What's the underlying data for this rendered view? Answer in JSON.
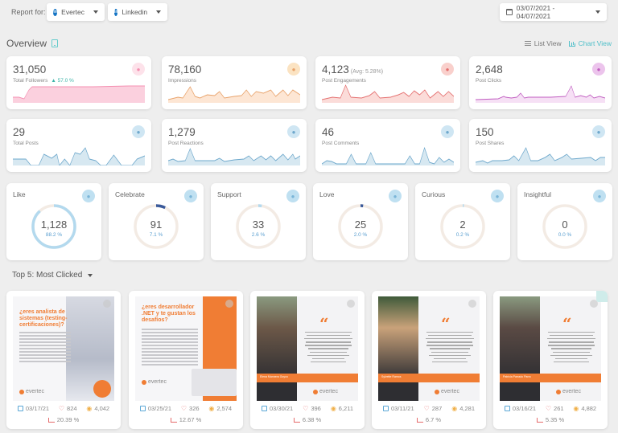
{
  "header": {
    "report_for_label": "Report for:",
    "account_select": {
      "value": "Evertec",
      "icon": "linkedin-icon"
    },
    "network_select": {
      "value": "Linkedin",
      "icon": "linkedin-icon"
    },
    "date_range": {
      "value": "03/07/2021 - 04/07/2021",
      "icon": "calendar-icon"
    }
  },
  "overview": {
    "title": "Overview",
    "views": {
      "list": "List View",
      "chart": "Chart View",
      "active": "chart"
    }
  },
  "metrics": [
    {
      "value": "31,050",
      "label": "Total Followers",
      "delta": "▲ 57.0 %",
      "icon": "followers-icon",
      "color": "#f48fb1",
      "bg": "#fde2ea",
      "fill": "#fbd0de"
    },
    {
      "value": "78,160",
      "label": "Impressions",
      "icon": "eye-icon",
      "color": "#e8a26a",
      "bg": "#fbe3c2",
      "fill": "#fde6d4"
    },
    {
      "value": "4,123",
      "avg": "(Avg: 5.28%)",
      "label": "Post Engagements",
      "icon": "heart-icon",
      "color": "#e46f6f",
      "bg": "#f9d0cc",
      "fill": "#fbdcd9"
    },
    {
      "value": "2,648",
      "label": "Post Clicks",
      "icon": "cursor-icon",
      "color": "#c05dc0",
      "bg": "#ecc4ec",
      "fill": "#f6e0f5"
    },
    {
      "value": "29",
      "label": "Total Posts",
      "icon": "post-icon",
      "color": "#6ea8cc",
      "bg": "#cfe6f3",
      "fill": "#d7e8f1"
    },
    {
      "value": "1,279",
      "label": "Post Reactions",
      "icon": "reaction-icon",
      "color": "#6ea8cc",
      "bg": "#cfe6f3",
      "fill": "#d7e8f1"
    },
    {
      "value": "46",
      "label": "Post Comments",
      "icon": "comments-icon",
      "color": "#6ea8cc",
      "bg": "#cfe6f3",
      "fill": "#d7e8f1"
    },
    {
      "value": "150",
      "label": "Post Shares",
      "icon": "share-icon",
      "color": "#6ea8cc",
      "bg": "#cfe6f3",
      "fill": "#d7e8f1"
    }
  ],
  "reactions": [
    {
      "title": "Like",
      "value": "1,128",
      "pct": "88.2 %",
      "ratio": 0.882,
      "icon": "thumbs-up-icon",
      "arc_color": "#b3d9ee"
    },
    {
      "title": "Celebrate",
      "value": "91",
      "pct": "7.1 %",
      "ratio": 0.071,
      "icon": "celebrate-icon",
      "arc_color": "#3b5a9a"
    },
    {
      "title": "Support",
      "value": "33",
      "pct": "2.6 %",
      "ratio": 0.026,
      "icon": "support-icon",
      "arc_color": "#b3d9ee"
    },
    {
      "title": "Love",
      "value": "25",
      "pct": "2.0 %",
      "ratio": 0.02,
      "icon": "love-icon",
      "arc_color": "#3b5a9a"
    },
    {
      "title": "Curious",
      "value": "2",
      "pct": "0.2 %",
      "ratio": 0.002,
      "icon": "curious-icon",
      "arc_color": "#b3d9ee"
    },
    {
      "title": "Insightful",
      "value": "0",
      "pct": "0.0 %",
      "ratio": 0,
      "icon": "lightbulb-icon",
      "arc_color": "#b3d9ee"
    }
  ],
  "top5": {
    "title": "Top 5: Most Clicked",
    "posts": [
      {
        "date": "03/17/21",
        "engagements": "824",
        "impressions": "4,042",
        "ctr": "20.39 %",
        "headline": "¿eres analista de sistemas (testing-certificaciones)?",
        "type": "creative-a"
      },
      {
        "date": "03/25/21",
        "engagements": "326",
        "impressions": "2,574",
        "ctr": "12.67 %",
        "headline": "¿eres desarrollador .NET y te gustan los desafíos?",
        "type": "creative-b"
      },
      {
        "date": "03/30/21",
        "engagements": "396",
        "impressions": "6,211",
        "ctr": "6.38 %",
        "name": "Elena Mannera Goyco",
        "type": "quote"
      },
      {
        "date": "03/11/21",
        "engagements": "287",
        "impressions": "4,281",
        "ctr": "6.7 %",
        "name": "Sylvette Ramos",
        "type": "quote"
      },
      {
        "date": "03/16/21",
        "engagements": "261",
        "impressions": "4,882",
        "ctr": "5.35 %",
        "name": "Patricia Parrado Parra",
        "type": "quote"
      }
    ],
    "brand": "evertec"
  }
}
